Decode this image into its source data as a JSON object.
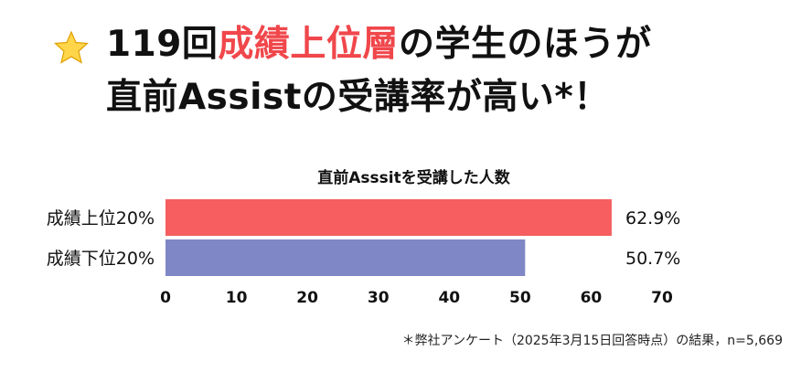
{
  "headline": {
    "line1_pre": "119回",
    "line1_accent": "成績上位層",
    "line1_post": "の学生のほうが",
    "line2": "直前Assistの受講率が高い*！",
    "icon": "star-icon",
    "accent_color": "#f0474b"
  },
  "chart_data": {
    "type": "bar",
    "orientation": "horizontal",
    "title": "直前Asssitを受講した人数",
    "categories": [
      "成績上位20%",
      "成績下位20%"
    ],
    "values": [
      62.9,
      50.7
    ],
    "value_labels": [
      "62.9%",
      "50.7%"
    ],
    "colors": [
      "#f65e5f",
      "#7f87c6"
    ],
    "xlim": [
      0,
      70
    ],
    "xticks": [
      0,
      10,
      20,
      30,
      40,
      50,
      60,
      70
    ],
    "grid": false,
    "legend": "none"
  },
  "footnote": "＊弊社アンケート（2025年3月15日回答時点）の結果，n=5,669"
}
